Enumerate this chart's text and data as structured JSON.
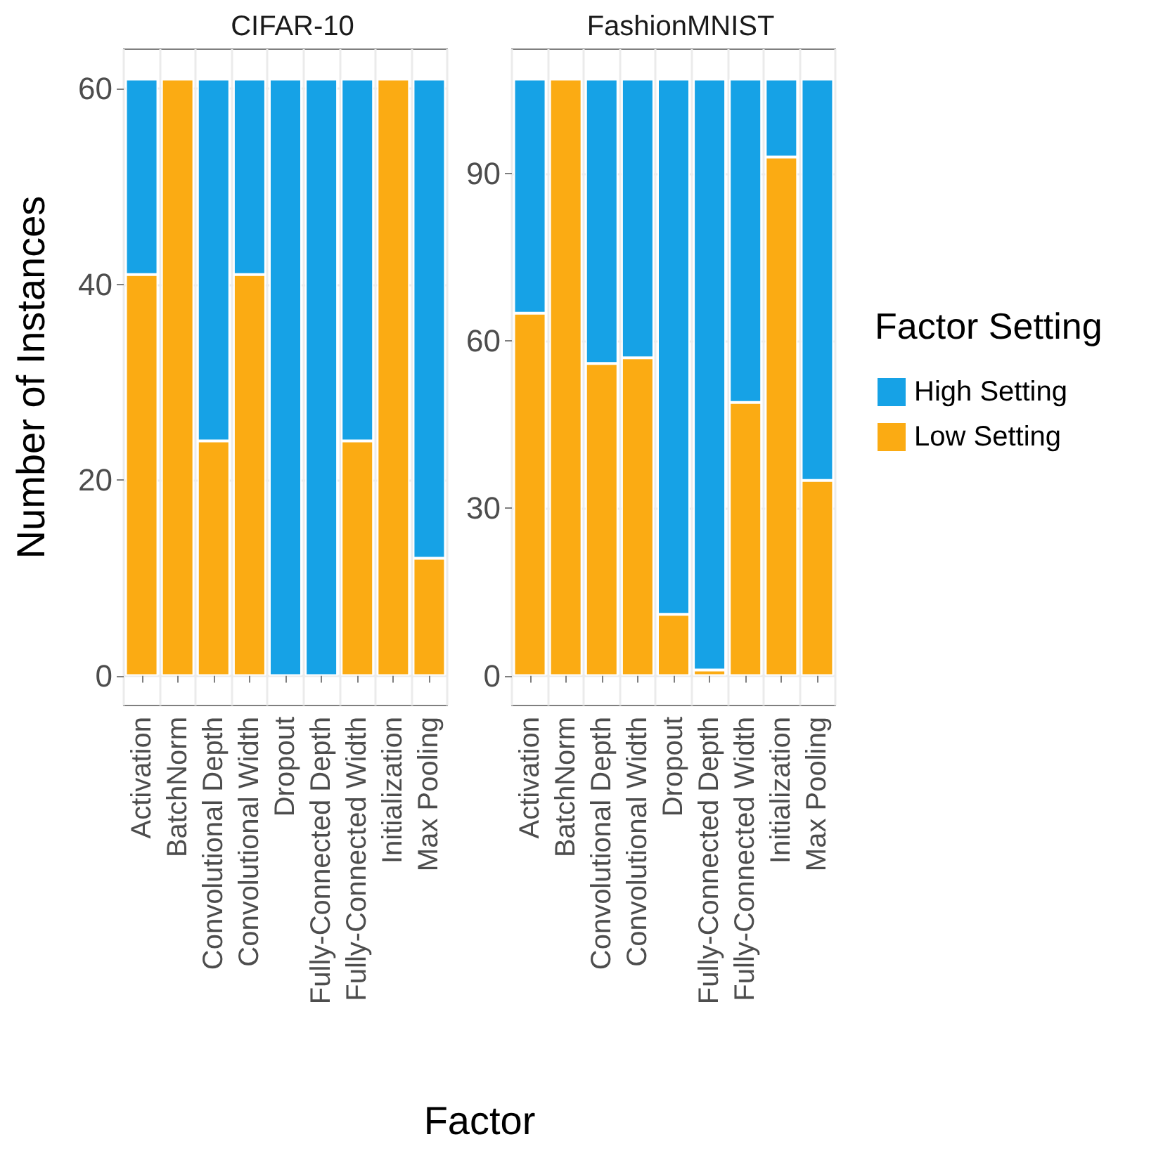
{
  "chart_data": [
    {
      "type": "bar",
      "title": "CIFAR-10",
      "ylabel": "Number of Instances",
      "xlabel": "Factor",
      "categories": [
        "Activation",
        "BatchNorm",
        "Convolutional Depth",
        "Convolutional Width",
        "Dropout",
        "Fully-Connected Depth",
        "Fully-Connected Width",
        "Initialization",
        "Max Pooling"
      ],
      "stacked": true,
      "series": [
        {
          "color": "#fbab13",
          "values": [
            41,
            61,
            24,
            41,
            0,
            0,
            24,
            61,
            12
          ]
        },
        {
          "color": "#16a2e6",
          "values": [
            20,
            0,
            37,
            20,
            61,
            61,
            37,
            0,
            49
          ]
        }
      ],
      "ylim": [
        -3.05,
        64.05
      ],
      "yticks": [
        0,
        20,
        40,
        60
      ],
      "grid": true,
      "legend": false
    },
    {
      "type": "bar",
      "title": "FashionMNIST",
      "legend_title": "Factor Setting",
      "categories": [
        "Activation",
        "BatchNorm",
        "Convolutional Depth",
        "Convolutional Width",
        "Dropout",
        "Fully-Connected Depth",
        "Fully-Connected Width",
        "Initialization",
        "Max Pooling"
      ],
      "stacked": true,
      "series": [
        {
          "name": "Low Setting",
          "color": "#fbab13",
          "values": [
            65,
            107,
            56,
            57,
            11,
            1,
            49,
            93,
            35
          ]
        },
        {
          "name": "High Setting",
          "color": "#16a2e6",
          "values": [
            42,
            0,
            51,
            50,
            96,
            106,
            58,
            14,
            72
          ]
        }
      ],
      "ylim": [
        -5.35,
        112.35
      ],
      "yticks": [
        0,
        30,
        60,
        90
      ],
      "grid": true,
      "legend": "right"
    }
  ]
}
